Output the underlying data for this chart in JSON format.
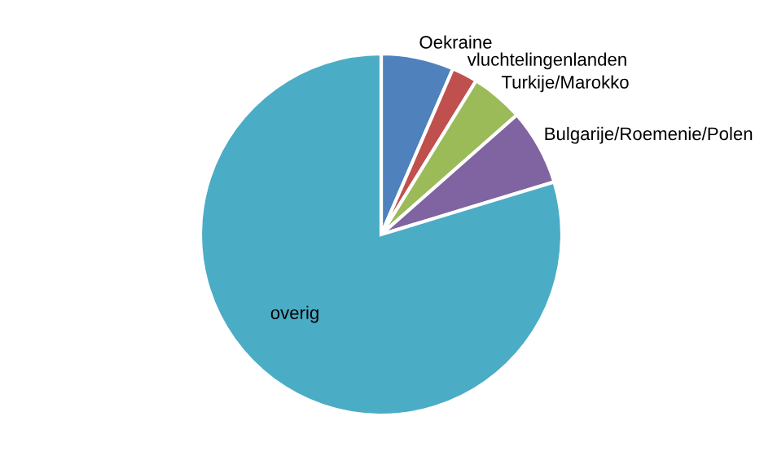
{
  "chart_data": {
    "type": "pie",
    "categories": [
      "Oekraine",
      "vluchtelingenlanden",
      "Turkije/Marokko",
      "Bulgarije/Roemenie/Polen",
      "overig"
    ],
    "values": [
      6.5,
      2.3,
      4.7,
      6.8,
      79.7
    ],
    "colors": [
      "#4f81bd",
      "#c0504d",
      "#9bbb59",
      "#8064a2",
      "#4bacc6"
    ]
  }
}
